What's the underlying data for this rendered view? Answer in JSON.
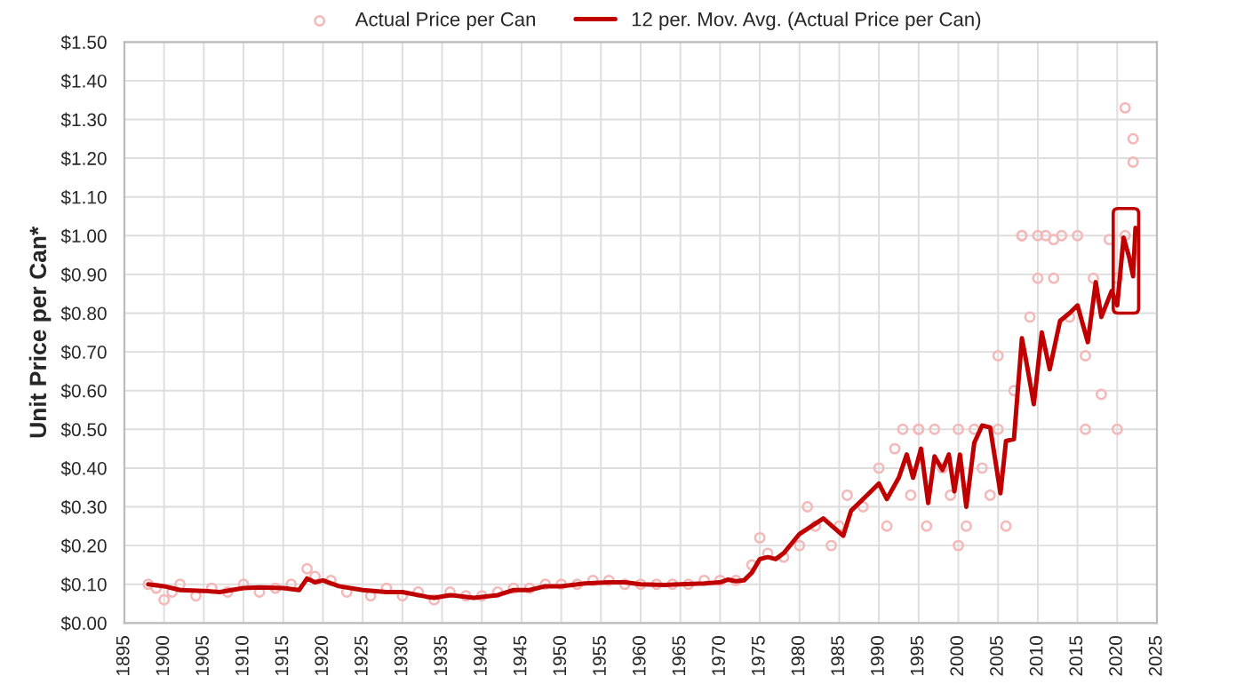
{
  "chart_data": {
    "type": "line",
    "ylabel": "Unit Price per Can*",
    "legend": "top",
    "grid": true,
    "xlim": [
      1895,
      2025
    ],
    "xticks": [
      {
        "value": 1895,
        "label": "1895"
      },
      {
        "value": 1900,
        "label": "1900"
      },
      {
        "value": 1905,
        "label": "1905"
      },
      {
        "value": 1910,
        "label": "1910"
      },
      {
        "value": 1915,
        "label": "1915"
      },
      {
        "value": 1920,
        "label": "1920"
      },
      {
        "value": 1925,
        "label": "1925"
      },
      {
        "value": 1930,
        "label": "1930"
      },
      {
        "value": 1935,
        "label": "1935"
      },
      {
        "value": 1940,
        "label": "1940"
      },
      {
        "value": 1945,
        "label": "1945"
      },
      {
        "value": 1950,
        "label": "1950"
      },
      {
        "value": 1955,
        "label": "1955"
      },
      {
        "value": 1960,
        "label": "1960"
      },
      {
        "value": 1965,
        "label": "1965"
      },
      {
        "value": 1970,
        "label": "1970"
      },
      {
        "value": 1975,
        "label": "1975"
      },
      {
        "value": 1980,
        "label": "1980"
      },
      {
        "value": 1985,
        "label": "1985"
      },
      {
        "value": 1990,
        "label": "1990"
      },
      {
        "value": 1995,
        "label": "1995"
      },
      {
        "value": 2000,
        "label": "2000"
      },
      {
        "value": 2005,
        "label": "2005"
      },
      {
        "value": 2010,
        "label": "2010"
      },
      {
        "value": 2015,
        "label": "2015"
      },
      {
        "value": 2020,
        "label": "2020"
      },
      {
        "value": 2025,
        "label": "2025"
      }
    ],
    "ylim": [
      0,
      1.5
    ],
    "yticks": [
      {
        "value": 0,
        "label": "$0.00"
      },
      {
        "value": 0.1,
        "label": "$0.10"
      },
      {
        "value": 0.2,
        "label": "$0.20"
      },
      {
        "value": 0.3,
        "label": "$0.30"
      },
      {
        "value": 0.4,
        "label": "$0.40"
      },
      {
        "value": 0.5,
        "label": "$0.50"
      },
      {
        "value": 0.6,
        "label": "$0.60"
      },
      {
        "value": 0.7,
        "label": "$0.70"
      },
      {
        "value": 0.8,
        "label": "$0.80"
      },
      {
        "value": 0.9,
        "label": "$0.90"
      },
      {
        "value": 1.0,
        "label": "$1.00"
      },
      {
        "value": 1.1,
        "label": "$1.10"
      },
      {
        "value": 1.2,
        "label": "$1.20"
      },
      {
        "value": 1.3,
        "label": "$1.30"
      },
      {
        "value": 1.4,
        "label": "$1.40"
      },
      {
        "value": 1.5,
        "label": "$1.50"
      }
    ],
    "series": [
      {
        "name": "Actual Price per Can",
        "type": "scatter",
        "marker": "circle",
        "color": "#f4b8b8",
        "x": [
          1898,
          1899,
          1900,
          1901,
          1902,
          1904,
          1906,
          1908,
          1910,
          1912,
          1914,
          1916,
          1918,
          1919,
          1921,
          1923,
          1926,
          1928,
          1930,
          1932,
          1934,
          1936,
          1938,
          1940,
          1942,
          1944,
          1946,
          1948,
          1950,
          1952,
          1954,
          1956,
          1958,
          1960,
          1962,
          1964,
          1966,
          1968,
          1970,
          1972,
          1974,
          1975,
          1976,
          1978,
          1980,
          1981,
          1982,
          1984,
          1985,
          1986,
          1988,
          1990,
          1991,
          1992,
          1993,
          1994,
          1995,
          1996,
          1997,
          1998,
          1999,
          2000,
          2001,
          2002,
          2003,
          2004,
          2005,
          2006,
          2007,
          2008,
          2009,
          2010,
          2011,
          2012,
          2013,
          2014,
          2015,
          2016,
          2017,
          2018,
          2019,
          2020,
          2021,
          2021,
          2022,
          2022,
          2008,
          2012,
          2016,
          2020,
          2000,
          2010,
          1995,
          2005
        ],
        "values": [
          0.1,
          0.09,
          0.06,
          0.08,
          0.1,
          0.07,
          0.09,
          0.08,
          0.1,
          0.08,
          0.09,
          0.1,
          0.14,
          0.12,
          0.11,
          0.08,
          0.07,
          0.09,
          0.07,
          0.08,
          0.06,
          0.08,
          0.07,
          0.07,
          0.08,
          0.09,
          0.09,
          0.1,
          0.1,
          0.1,
          0.11,
          0.11,
          0.1,
          0.1,
          0.1,
          0.1,
          0.1,
          0.11,
          0.11,
          0.11,
          0.15,
          0.22,
          0.18,
          0.17,
          0.2,
          0.3,
          0.25,
          0.2,
          0.25,
          0.33,
          0.3,
          0.4,
          0.25,
          0.45,
          0.5,
          0.33,
          0.5,
          0.25,
          0.5,
          0.4,
          0.33,
          0.5,
          0.25,
          0.5,
          0.4,
          0.33,
          0.5,
          0.25,
          0.6,
          1.0,
          0.79,
          0.89,
          1.0,
          0.89,
          1.0,
          0.79,
          1.0,
          0.69,
          0.89,
          0.59,
          0.99,
          0.5,
          1.33,
          1.0,
          1.25,
          1.19,
          1.0,
          0.99,
          0.5,
          0.89,
          0.2,
          1.0,
          0.5,
          0.69
        ]
      },
      {
        "name": "12 per. Mov. Avg. (Actual Price per Can)",
        "color": "#c00000",
        "line_style": "solid",
        "marker": "none",
        "x": [
          1898,
          1900,
          1902,
          1905,
          1907,
          1910,
          1912,
          1915,
          1917,
          1918,
          1919,
          1920,
          1922,
          1925,
          1928,
          1930,
          1933,
          1934,
          1936,
          1939,
          1942,
          1944,
          1946,
          1948,
          1950,
          1953,
          1956,
          1958,
          1960,
          1963,
          1965,
          1968,
          1970,
          1971,
          1972,
          1973,
          1974,
          1975,
          1976,
          1977,
          1978,
          1980,
          1983,
          1985.5,
          1986.5,
          1988.5,
          1990,
          1991,
          1992.5,
          1993.5,
          1994.3,
          1995.3,
          1996.2,
          1997,
          1998,
          1998.8,
          1999.5,
          2000.2,
          2001,
          2002,
          2003,
          2004,
          2005.3,
          2006,
          2007,
          2008,
          2008.6,
          2009.5,
          2010.5,
          2011.5,
          2012.8,
          2014,
          2015,
          2016.3,
          2017.3,
          2018,
          2019.3,
          2020,
          2020.8,
          2021.5,
          2022,
          2022.3
        ],
        "values": [
          0.1,
          0.095,
          0.085,
          0.083,
          0.08,
          0.09,
          0.092,
          0.09,
          0.085,
          0.115,
          0.105,
          0.11,
          0.095,
          0.085,
          0.08,
          0.08,
          0.068,
          0.065,
          0.072,
          0.065,
          0.072,
          0.085,
          0.085,
          0.095,
          0.095,
          0.102,
          0.105,
          0.105,
          0.1,
          0.098,
          0.1,
          0.102,
          0.105,
          0.112,
          0.108,
          0.11,
          0.13,
          0.165,
          0.17,
          0.165,
          0.18,
          0.23,
          0.27,
          0.225,
          0.29,
          0.33,
          0.36,
          0.32,
          0.375,
          0.435,
          0.375,
          0.45,
          0.31,
          0.43,
          0.395,
          0.435,
          0.34,
          0.435,
          0.3,
          0.465,
          0.51,
          0.505,
          0.335,
          0.47,
          0.475,
          0.735,
          0.67,
          0.565,
          0.75,
          0.655,
          0.78,
          0.8,
          0.82,
          0.725,
          0.88,
          0.79,
          0.857,
          0.82,
          0.995,
          0.945,
          0.895,
          1.02
        ]
      }
    ]
  }
}
